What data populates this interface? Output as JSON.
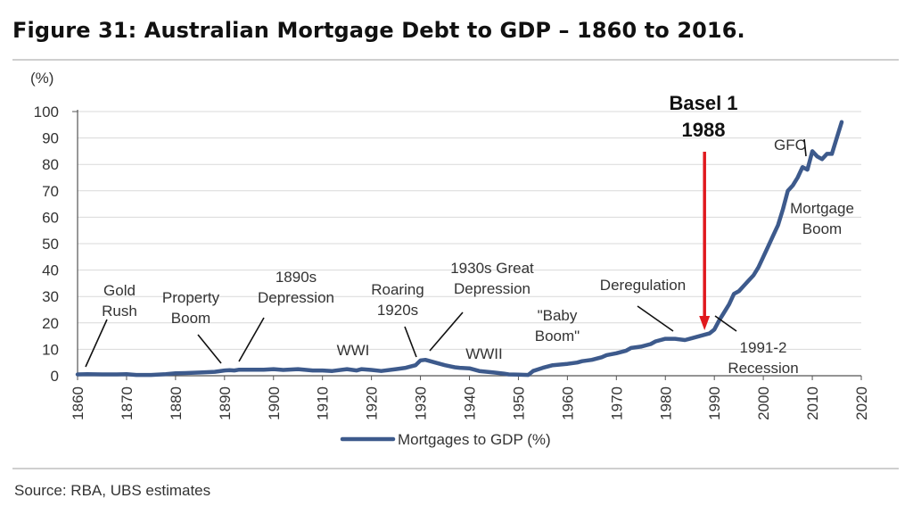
{
  "title": "Figure 31: Australian Mortgage Debt to GDP – 1860 to 2016.",
  "source": "Source:  RBA, UBS estimates",
  "chart_data": {
    "type": "line",
    "ylabel": "(%)",
    "xlim": [
      1860,
      2020
    ],
    "ylim": [
      0,
      100
    ],
    "xticks": [
      1860,
      1870,
      1880,
      1890,
      1900,
      1910,
      1920,
      1930,
      1940,
      1950,
      1960,
      1970,
      1980,
      1990,
      2000,
      2010,
      2020
    ],
    "yticks": [
      0,
      10,
      20,
      30,
      40,
      50,
      60,
      70,
      80,
      90,
      100
    ],
    "grid": "horizontal",
    "legend": "bottom",
    "line_color": "#3d5a8c",
    "series": [
      {
        "name": "Mortgages to GDP (%)",
        "x": [
          1860,
          1862,
          1865,
          1868,
          1870,
          1872,
          1875,
          1878,
          1880,
          1882,
          1885,
          1888,
          1890,
          1891,
          1892,
          1893,
          1895,
          1898,
          1900,
          1902,
          1905,
          1908,
          1910,
          1912,
          1915,
          1917,
          1918,
          1920,
          1922,
          1925,
          1927,
          1929,
          1930,
          1931,
          1932,
          1933,
          1935,
          1937,
          1938,
          1940,
          1942,
          1945,
          1947,
          1948,
          1950,
          1952,
          1953,
          1955,
          1957,
          1960,
          1962,
          1963,
          1965,
          1967,
          1968,
          1970,
          1972,
          1973,
          1975,
          1977,
          1978,
          1980,
          1982,
          1984,
          1985,
          1986,
          1987,
          1988,
          1989,
          1990,
          1991,
          1992,
          1993,
          1994,
          1995,
          1996,
          1997,
          1998,
          1999,
          2000,
          2001,
          2002,
          2003,
          2004,
          2005,
          2006,
          2007,
          2008,
          2009,
          2010,
          2011,
          2012,
          2013,
          2014,
          2015,
          2016
        ],
        "y": [
          0.5,
          0.6,
          0.5,
          0.5,
          0.6,
          0.3,
          0.3,
          0.6,
          0.9,
          1.0,
          1.2,
          1.5,
          2.0,
          2.1,
          2.0,
          2.3,
          2.3,
          2.3,
          2.5,
          2.2,
          2.5,
          2.0,
          2.0,
          1.8,
          2.5,
          2.0,
          2.5,
          2.2,
          1.8,
          2.5,
          3.0,
          4.0,
          5.8,
          6.0,
          5.5,
          5.0,
          4.0,
          3.2,
          3.0,
          2.8,
          1.8,
          1.2,
          0.8,
          0.5,
          0.4,
          0.3,
          1.8,
          3.0,
          4.0,
          4.5,
          5.0,
          5.5,
          6.0,
          7.0,
          7.8,
          8.5,
          9.5,
          10.5,
          11.0,
          12.0,
          13.0,
          14.0,
          14.0,
          13.5,
          14.0,
          14.5,
          15.0,
          15.5,
          16.0,
          17.5,
          21.0,
          24.0,
          27.0,
          31.0,
          32.0,
          34.0,
          36.0,
          38.0,
          41.0,
          45.0,
          49.0,
          53.0,
          57.0,
          63.0,
          70.0,
          72.0,
          75.0,
          79.0,
          78.0,
          85.0,
          83.0,
          82.0,
          84.0,
          84.0,
          90.0,
          96.0
        ]
      }
    ],
    "annotations": [
      {
        "id": "gold-rush",
        "lines": [
          "Gold",
          "Rush"
        ]
      },
      {
        "id": "property-boom",
        "lines": [
          "Property",
          "Boom"
        ]
      },
      {
        "id": "1890s-depression",
        "lines": [
          "1890s",
          "Depression"
        ]
      },
      {
        "id": "wwi",
        "lines": [
          "WWI"
        ]
      },
      {
        "id": "roaring-1920s",
        "lines": [
          "Roaring",
          "1920s"
        ]
      },
      {
        "id": "great-depression",
        "lines": [
          "1930s Great",
          "Depression"
        ]
      },
      {
        "id": "wwii",
        "lines": [
          "WWII"
        ]
      },
      {
        "id": "baby-boom",
        "lines": [
          "\"Baby",
          "Boom\""
        ]
      },
      {
        "id": "deregulation",
        "lines": [
          "Deregulation"
        ]
      },
      {
        "id": "basel-1",
        "lines": [
          "Basel 1",
          "1988"
        ],
        "color": "#111111",
        "arrow_color": "#e0191e"
      },
      {
        "id": "gfc",
        "lines": [
          "GFC"
        ]
      },
      {
        "id": "mortgage-boom",
        "lines": [
          "Mortgage",
          "Boom"
        ]
      },
      {
        "id": "1991-2-recession",
        "lines": [
          "1991-2",
          "Recession"
        ]
      }
    ]
  }
}
